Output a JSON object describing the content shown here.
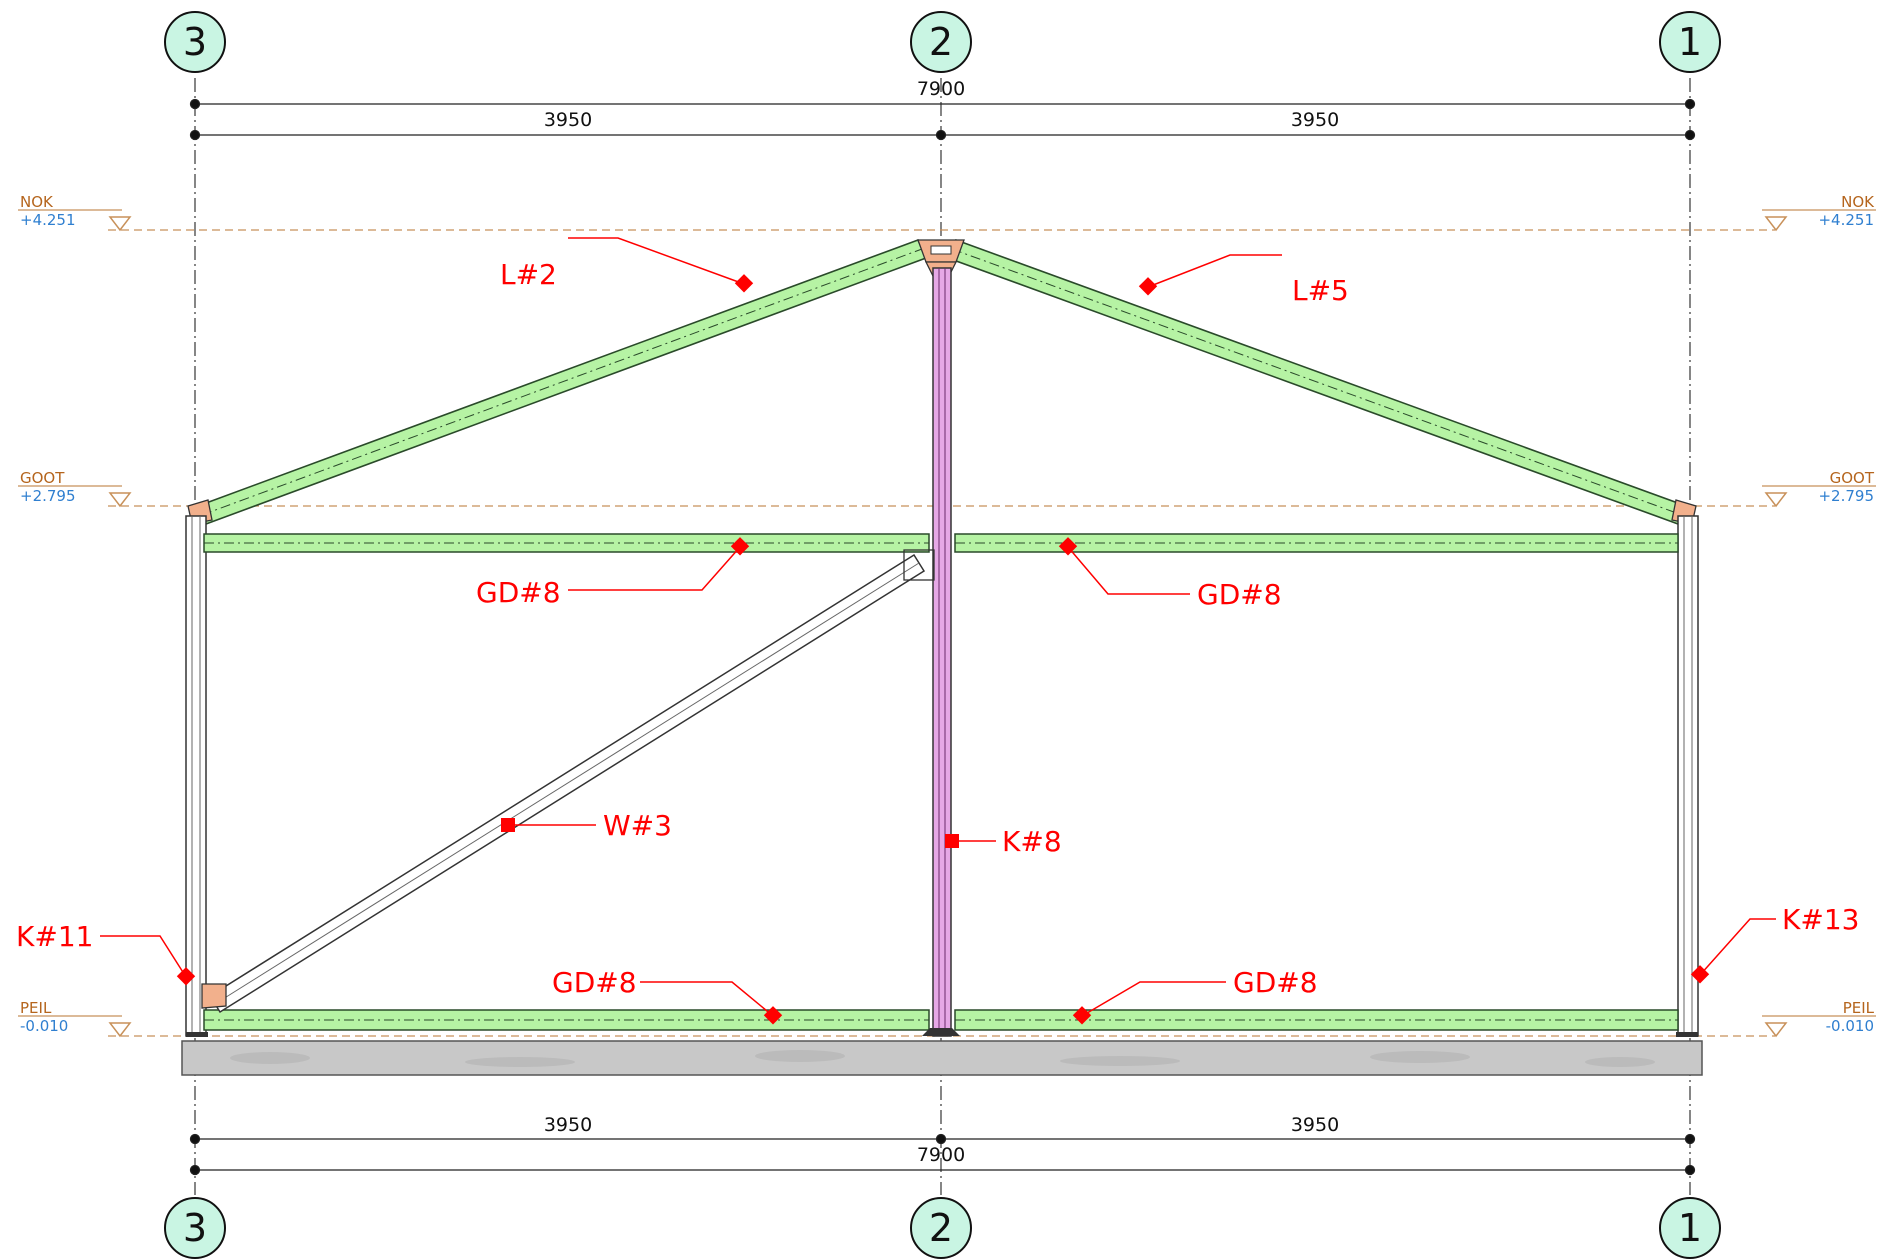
{
  "colors": {
    "grid_bubble_fill": "#c9f5e3",
    "member_green": "#b6f3a4",
    "member_pink": "#e6a8e6",
    "connection_plate": "#f2b08c",
    "tag_red": "#ff0000",
    "level_line": "#c8915a",
    "level_value": "#2f7fd0",
    "foundation": "#c8c8c8"
  },
  "grid_axes": [
    {
      "id": "axis-3",
      "label": "3"
    },
    {
      "id": "axis-2",
      "label": "2"
    },
    {
      "id": "axis-1",
      "label": "1"
    }
  ],
  "dimensions": {
    "top_total": "7900",
    "top_left": "3950",
    "top_right": "3950",
    "bottom_left": "3950",
    "bottom_right": "3950",
    "bottom_total": "7900"
  },
  "levels": {
    "nok": {
      "name": "NOK",
      "value": "+4.251"
    },
    "goot": {
      "name": "GOOT",
      "value": "+2.795"
    },
    "peil": {
      "name": "PEIL",
      "value": "-0.010"
    }
  },
  "tags": {
    "rafter_left": "L#2",
    "rafter_right": "L#5",
    "girder_top_left": "GD#8",
    "girder_top_right": "GD#8",
    "brace": "W#3",
    "center_column": "K#8",
    "left_column": "K#11",
    "right_column": "K#13",
    "girder_bottom_left": "GD#8",
    "girder_bottom_right": "GD#8"
  },
  "icons": {
    "level_marker": "level-triangle-icon",
    "tag_marker": "red-diamond-icon"
  }
}
